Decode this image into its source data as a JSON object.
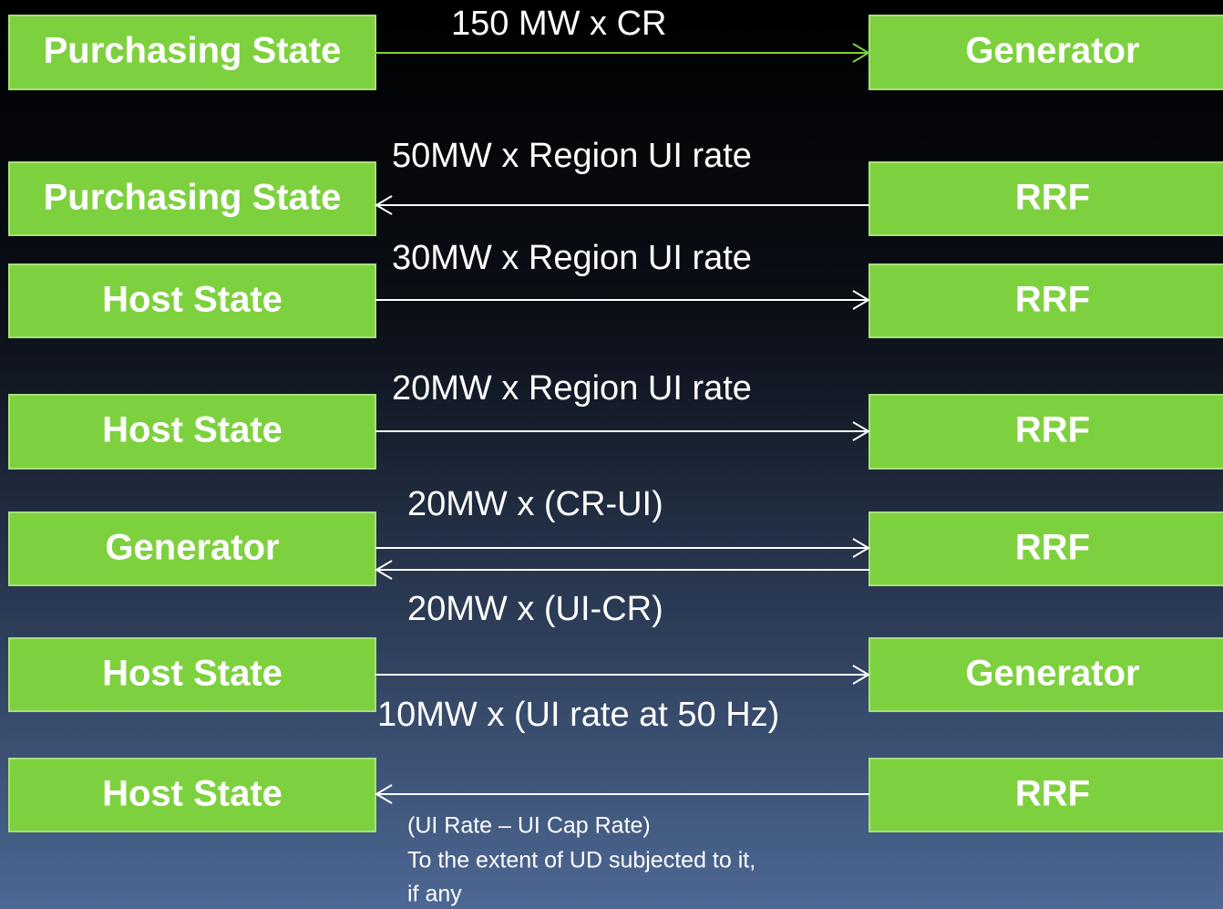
{
  "rows": [
    {
      "left": "Purchasing State",
      "right": "Generator"
    },
    {
      "left": "Purchasing State",
      "right": "RRF"
    },
    {
      "left": "Host State",
      "right": "RRF"
    },
    {
      "left": "Host State",
      "right": "RRF"
    },
    {
      "left": "Generator",
      "right": "RRF"
    },
    {
      "left": "Host State",
      "right": "Generator"
    },
    {
      "left": "Host State",
      "right": "RRF"
    }
  ],
  "labels": [
    "150 MW x CR",
    "50MW x Region UI rate",
    "30MW x Region UI rate",
    "20MW x Region UI rate",
    "20MW x (CR-UI)",
    "20MW x (UI-CR)",
    "10MW x (UI rate at 50 Hz)"
  ],
  "note": [
    "(UI Rate – UI Cap Rate)",
    "To the extent of UD subjected to it,",
    "if any"
  ]
}
